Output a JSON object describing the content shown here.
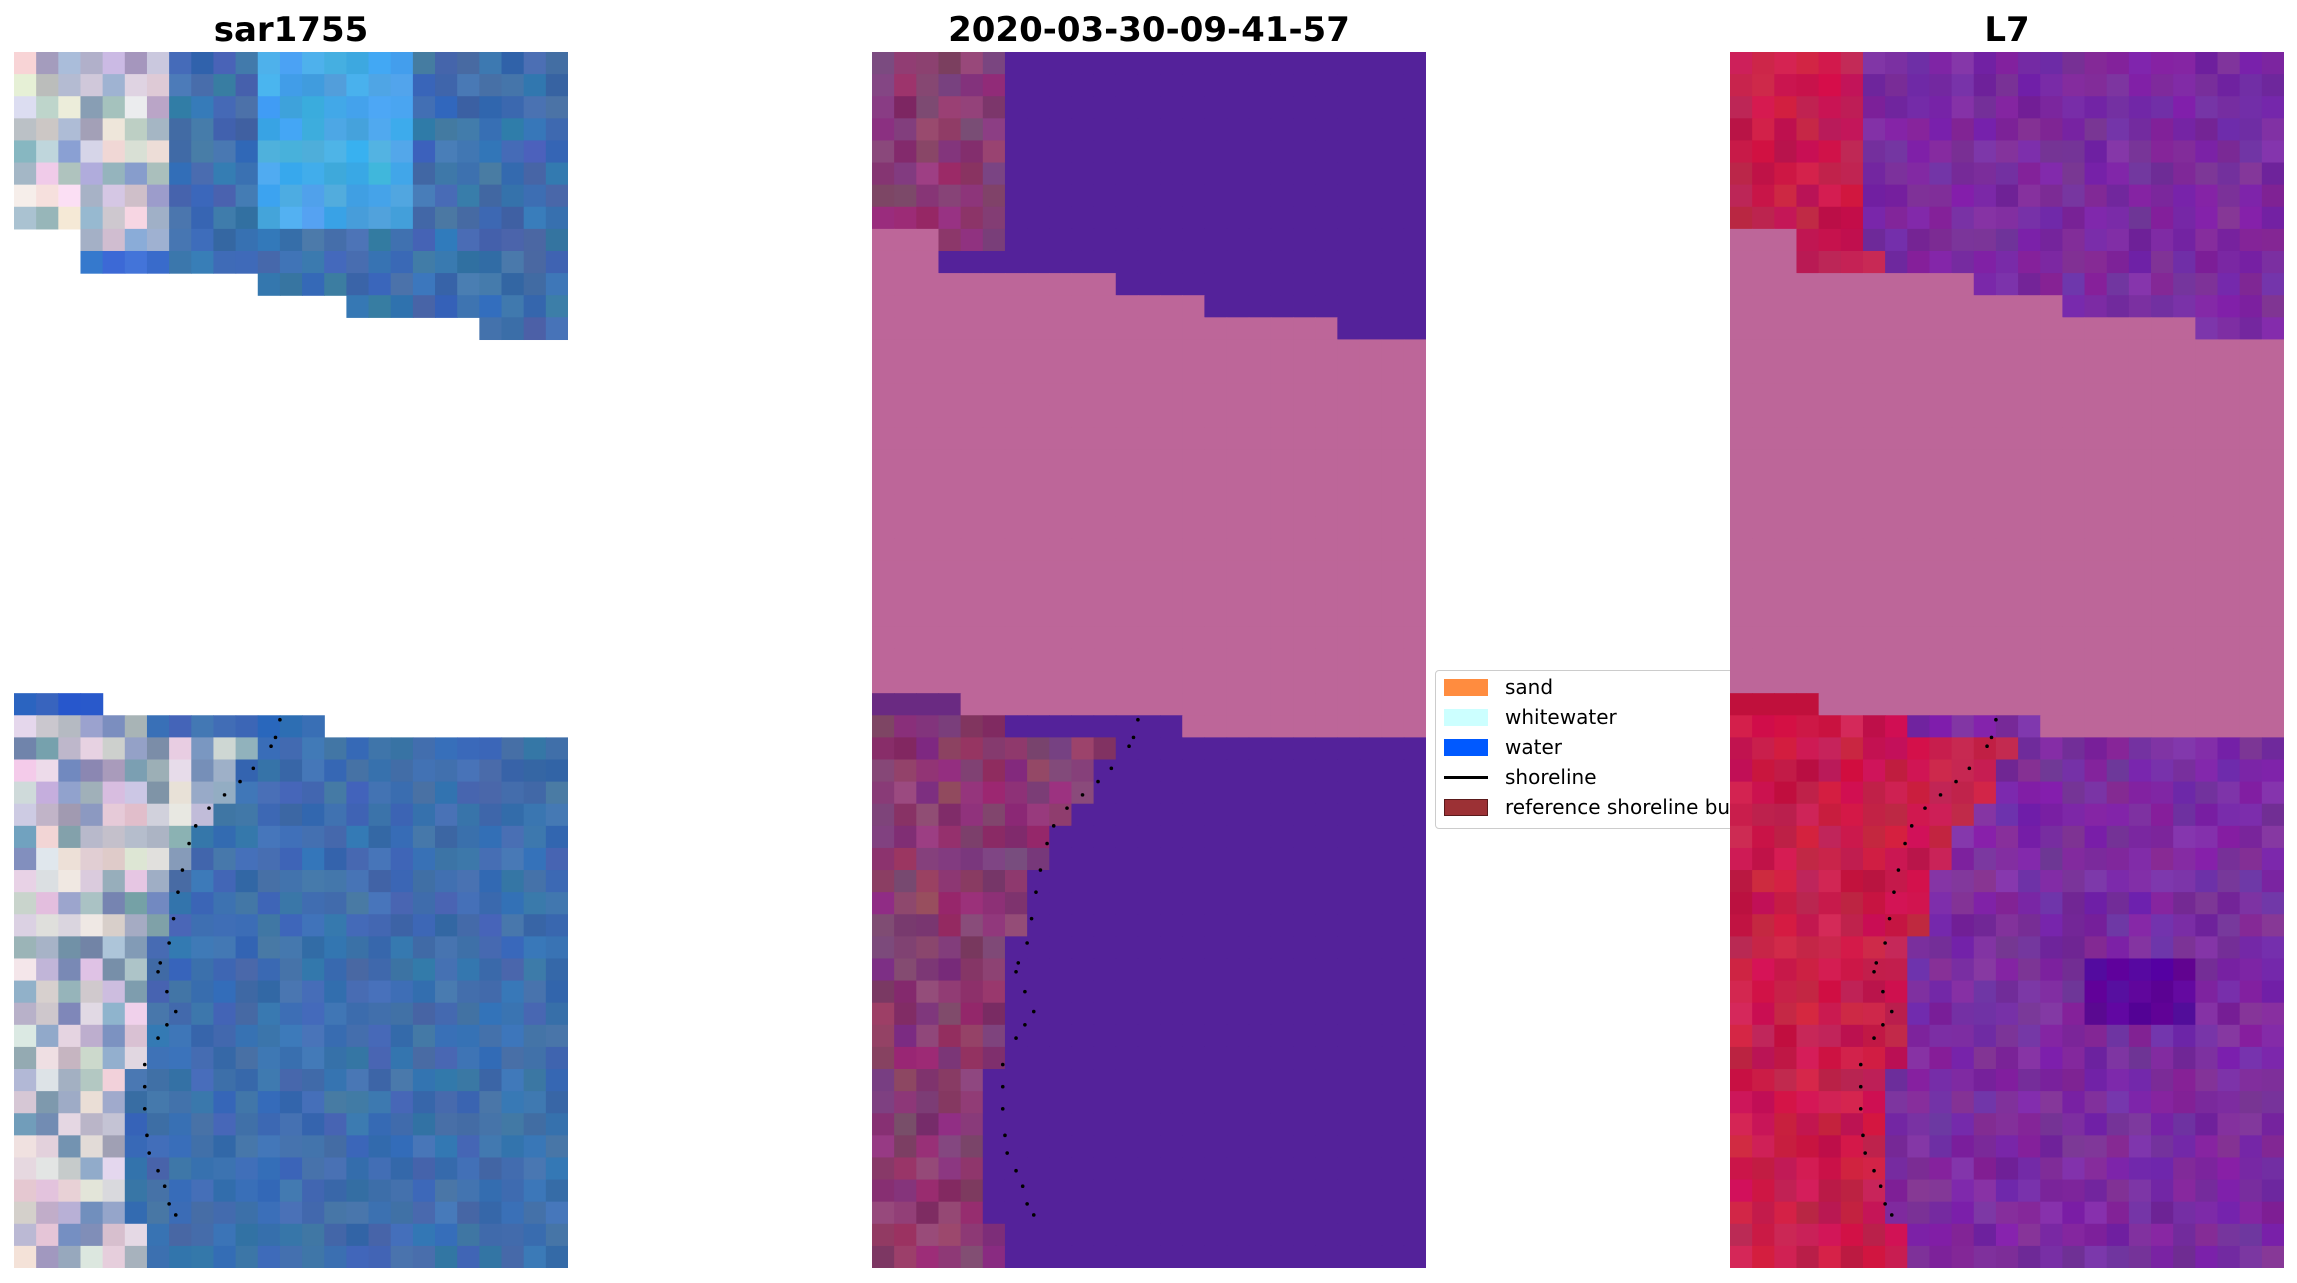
{
  "panels": [
    {
      "title": "sar1755"
    },
    {
      "title": "2020-03-30-09-41-57"
    },
    {
      "title": "L7"
    }
  ],
  "legend": {
    "items": [
      {
        "label": "sand",
        "color": "#ff8c3f",
        "kind": "patch"
      },
      {
        "label": "whitewater",
        "color": "#ccffff",
        "kind": "patch"
      },
      {
        "label": "water",
        "color": "#0059ff",
        "kind": "patch"
      },
      {
        "label": "shoreline",
        "color": "#000000",
        "kind": "line"
      },
      {
        "label": "reference shoreline buffer",
        "color": "#9c3135",
        "kind": "patch"
      }
    ]
  },
  "colors": {
    "rgb_sand": "#c9c4d6",
    "rgb_water": "#3e6faf",
    "rgb_water_bright": "#46a8e8",
    "class_water": "#54229a",
    "class_land": "#8a3a72",
    "class_buffer": "#bd6699",
    "index_land": "#c71c4c",
    "index_water": "#7a2ba0",
    "index_buffer": "#bd6699"
  }
}
